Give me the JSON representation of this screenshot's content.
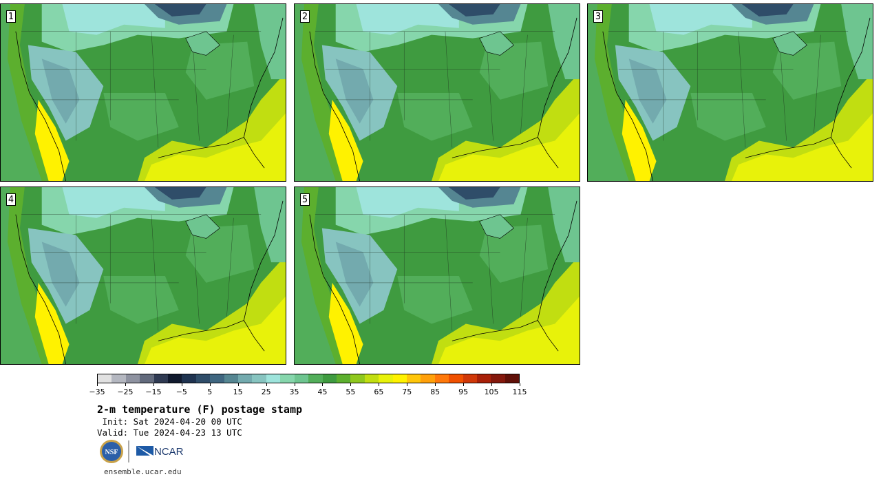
{
  "panels": [
    {
      "label": "1"
    },
    {
      "label": "2"
    },
    {
      "label": "3"
    },
    {
      "label": "4"
    },
    {
      "label": "5"
    }
  ],
  "colorbar": {
    "colors": [
      "#e1e1e1",
      "#b4b7c0",
      "#8e92a0",
      "#626a7c",
      "#2f3a52",
      "#111a2e",
      "#1f3350",
      "#2f4d69",
      "#3f6680",
      "#558692",
      "#73aaae",
      "#87c4c0",
      "#9ee4dc",
      "#86d6ac",
      "#6ec590",
      "#52ae5a",
      "#3f9b40",
      "#5caf2e",
      "#8fc81e",
      "#c1de11",
      "#e8f20a",
      "#fff200",
      "#ffc60a",
      "#ffa00a",
      "#ff780a",
      "#f05000",
      "#d03808",
      "#a82008",
      "#84180c",
      "#601008"
    ],
    "tick_labels": [
      "−35",
      "−25",
      "−15",
      "−5",
      "5",
      "15",
      "25",
      "35",
      "45",
      "55",
      "65",
      "75",
      "85",
      "95",
      "105",
      "115"
    ]
  },
  "title": "2-m temperature (F) postage stamp",
  "init_line": " Init: Sat 2024-04-20 00 UTC",
  "valid_line": "Valid: Tue 2024-04-23 13 UTC",
  "logos": {
    "nsf": "NSF",
    "ncar": "NCAR"
  },
  "url": "ensemble.ucar.edu"
}
